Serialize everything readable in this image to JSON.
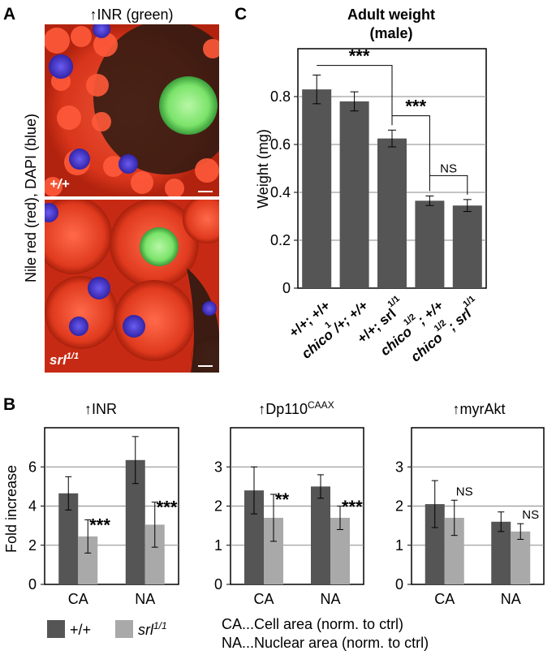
{
  "panels": {
    "A": {
      "letter": "A",
      "title": "↑INR (green)",
      "ylabel": "Nile red (red), DAPI (blue)",
      "image_top_label": "+/+",
      "image_bottom_label_base": "srl",
      "image_bottom_label_sup": "1/1"
    },
    "B_letter": "B",
    "C_letter": "C"
  },
  "legend": {
    "wt_label": "+/+",
    "srl_label_base": "srl",
    "srl_label_sup": "1/1"
  },
  "notes": {
    "ca": "CA...Cell area (norm. to ctrl)",
    "na": "NA...Nuclear area (norm. to ctrl)"
  },
  "colors": {
    "dark_bar": "#555555",
    "light_bar": "#a9a9a9",
    "axis": "#000000",
    "grid": "#888888",
    "image_red": "#e03a1e",
    "image_green": "#7be36a",
    "image_blue": "#4a3cc8"
  },
  "chart_data": [
    {
      "id": "C",
      "type": "bar",
      "title": "Adult weight",
      "subtitle": "(male)",
      "xlabel": "",
      "ylabel": "Weight (mg)",
      "ylim": [
        0,
        1.0
      ],
      "yticks": [
        0,
        0.2,
        0.4,
        0.6,
        0.8
      ],
      "grid": true,
      "categories": [
        {
          "base": "+/+; +/+",
          "sup": "",
          "tail": "",
          "italic": false
        },
        {
          "base": "chico",
          "sup": "1",
          "tail": "/+; +/+",
          "italic": true
        },
        {
          "base": "+/+; srl",
          "sup": "1/1",
          "tail": "",
          "italic": false
        },
        {
          "base": "chico",
          "sup": "1/2",
          "tail": "; +/+",
          "italic": true
        },
        {
          "base": "chico",
          "sup": "1/2",
          "tail": "; srl",
          "sup2": "1/1",
          "italic": true
        }
      ],
      "values": [
        0.83,
        0.78,
        0.625,
        0.365,
        0.345
      ],
      "errors": [
        0.06,
        0.04,
        0.035,
        0.02,
        0.025
      ],
      "significance": [
        {
          "from": 0,
          "to": 2,
          "label": "***"
        },
        {
          "from": 2,
          "to": 3,
          "label": "***"
        },
        {
          "from": 3,
          "to": 4,
          "label": "NS"
        }
      ]
    },
    {
      "id": "B1",
      "type": "bar",
      "title": "↑INR",
      "title_sup": "",
      "xlabel": "",
      "ylabel": "Fold increase",
      "ylim": [
        0,
        8
      ],
      "yticks": [
        0,
        2,
        4,
        6
      ],
      "grid": true,
      "categories": [
        "CA",
        "NA"
      ],
      "series": [
        {
          "name": "+/+",
          "values": [
            4.65,
            6.35
          ],
          "errors": [
            0.85,
            1.2
          ]
        },
        {
          "name": "srl1/1",
          "values": [
            2.45,
            3.05
          ],
          "errors": [
            0.85,
            1.15
          ]
        }
      ],
      "annotations": [
        "***",
        "***"
      ]
    },
    {
      "id": "B2",
      "type": "bar",
      "title": "↑Dp110",
      "title_sup": "CAAX",
      "xlabel": "",
      "ylabel": "",
      "ylim": [
        0,
        4
      ],
      "yticks": [
        0,
        1,
        2,
        3
      ],
      "grid": true,
      "categories": [
        "CA",
        "NA"
      ],
      "series": [
        {
          "name": "+/+",
          "values": [
            2.4,
            2.5
          ],
          "errors": [
            0.6,
            0.3
          ]
        },
        {
          "name": "srl1/1",
          "values": [
            1.7,
            1.7
          ],
          "errors": [
            0.6,
            0.3
          ]
        }
      ],
      "annotations": [
        "**",
        "***"
      ]
    },
    {
      "id": "B3",
      "type": "bar",
      "title": "↑myrAkt",
      "title_sup": "",
      "xlabel": "",
      "ylabel": "",
      "ylim": [
        0,
        4
      ],
      "yticks": [
        0,
        1,
        2,
        3
      ],
      "grid": true,
      "categories": [
        "CA",
        "NA"
      ],
      "series": [
        {
          "name": "+/+",
          "values": [
            2.05,
            1.6
          ],
          "errors": [
            0.6,
            0.25
          ]
        },
        {
          "name": "srl1/1",
          "values": [
            1.7,
            1.35
          ],
          "errors": [
            0.45,
            0.2
          ]
        }
      ],
      "annotations": [
        "NS",
        "NS"
      ]
    }
  ]
}
